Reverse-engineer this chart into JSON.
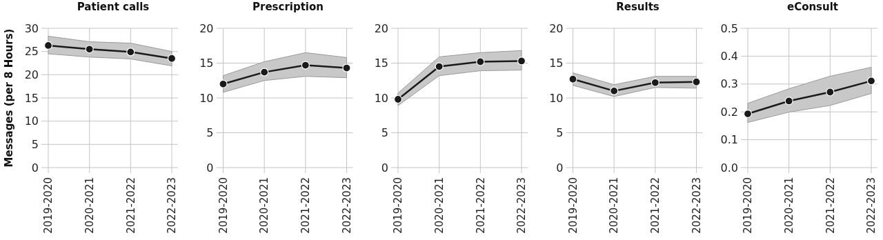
{
  "chart_data": [
    {
      "type": "line",
      "title": "Patient calls",
      "ylabel": "Messages (per 8 Hours)",
      "categories": [
        "2019-2020",
        "2020-2021",
        "2021-2022",
        "2022-2023"
      ],
      "ylim": [
        0,
        30
      ],
      "yticks": [
        0,
        5,
        10,
        15,
        20,
        25,
        30
      ],
      "grid": true,
      "marker": "circle",
      "series": [
        {
          "color": "#1a1a1a",
          "values": [
            26.3,
            25.5,
            24.9,
            23.5
          ],
          "lower": [
            24.5,
            23.8,
            23.4,
            21.9
          ],
          "upper": [
            28.3,
            27.1,
            26.8,
            25.0
          ]
        }
      ]
    },
    {
      "type": "line",
      "title": "Prescription",
      "categories": [
        "2019-2020",
        "2020-2021",
        "2021-2022",
        "2022-2023"
      ],
      "ylim": [
        0,
        20
      ],
      "yticks": [
        0,
        5,
        10,
        15,
        20
      ],
      "grid": true,
      "marker": "circle",
      "series": [
        {
          "color": "#1a1a1a",
          "values": [
            12.0,
            13.7,
            14.7,
            14.3
          ],
          "lower": [
            10.8,
            12.5,
            13.1,
            12.9
          ],
          "upper": [
            13.2,
            15.2,
            16.5,
            15.8
          ]
        }
      ]
    },
    {
      "type": "line",
      "categories": [
        "2019-2020",
        "2020-2021",
        "2021-2022",
        "2022-2023"
      ],
      "ylim": [
        0,
        20
      ],
      "yticks": [
        0,
        5,
        10,
        15,
        20
      ],
      "grid": true,
      "marker": "circle",
      "series": [
        {
          "color": "#1a1a1a",
          "values": [
            9.8,
            14.5,
            15.2,
            15.3
          ],
          "lower": [
            8.9,
            13.2,
            13.9,
            14.0
          ],
          "upper": [
            10.7,
            15.9,
            16.5,
            16.8
          ]
        }
      ]
    },
    {
      "type": "line",
      "title": "Results",
      "categories": [
        "2019-2020",
        "2020-2021",
        "2021-2022",
        "2022-2023"
      ],
      "ylim": [
        0,
        20
      ],
      "yticks": [
        0,
        5,
        10,
        15,
        20
      ],
      "grid": true,
      "marker": "circle",
      "series": [
        {
          "color": "#1a1a1a",
          "values": [
            12.7,
            11.0,
            12.2,
            12.3
          ],
          "lower": [
            11.8,
            10.2,
            11.5,
            11.4
          ],
          "upper": [
            13.6,
            11.9,
            13.1,
            13.1
          ]
        }
      ]
    },
    {
      "type": "line",
      "title": "eConsult",
      "categories": [
        "2019-2020",
        "2020-2021",
        "2021-2022",
        "2022-2023"
      ],
      "ylim": [
        0,
        0.5
      ],
      "yticks": [
        {
          "value": 0,
          "label": "0.0"
        },
        0.1,
        0.2,
        0.3,
        0.4,
        0.5
      ],
      "grid": true,
      "marker": "circle",
      "series": [
        {
          "color": "#1a1a1a",
          "values": [
            0.193,
            0.239,
            0.271,
            0.311
          ],
          "lower": [
            0.162,
            0.199,
            0.223,
            0.266
          ],
          "upper": [
            0.231,
            0.283,
            0.328,
            0.36
          ]
        }
      ]
    }
  ]
}
